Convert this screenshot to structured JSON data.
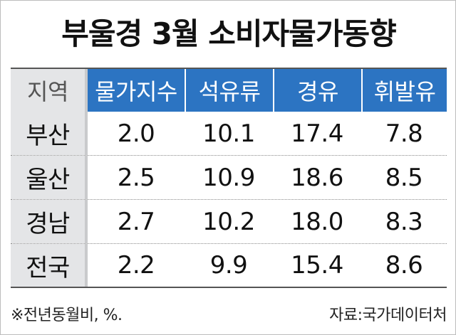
{
  "title": "부울경 3월 소비자물가동향",
  "table": {
    "region_header": "지역",
    "columns": [
      "물가지수",
      "석유류",
      "경유",
      "휘발유"
    ],
    "rows": [
      {
        "region": "부산",
        "values": [
          "2.0",
          "10.1",
          "17.4",
          "7.8"
        ]
      },
      {
        "region": "울산",
        "values": [
          "2.5",
          "10.9",
          "18.6",
          "8.5"
        ]
      },
      {
        "region": "경남",
        "values": [
          "2.7",
          "10.2",
          "18.0",
          "8.3"
        ]
      },
      {
        "region": "전국",
        "values": [
          "2.2",
          "9.9",
          "15.4",
          "8.6"
        ]
      }
    ]
  },
  "footer": {
    "note": "※전년동월비, %.",
    "source": "자료:국가데이터처"
  },
  "colors": {
    "header_blue": "#2c74c2",
    "region_gray": "#e4e5e7"
  }
}
